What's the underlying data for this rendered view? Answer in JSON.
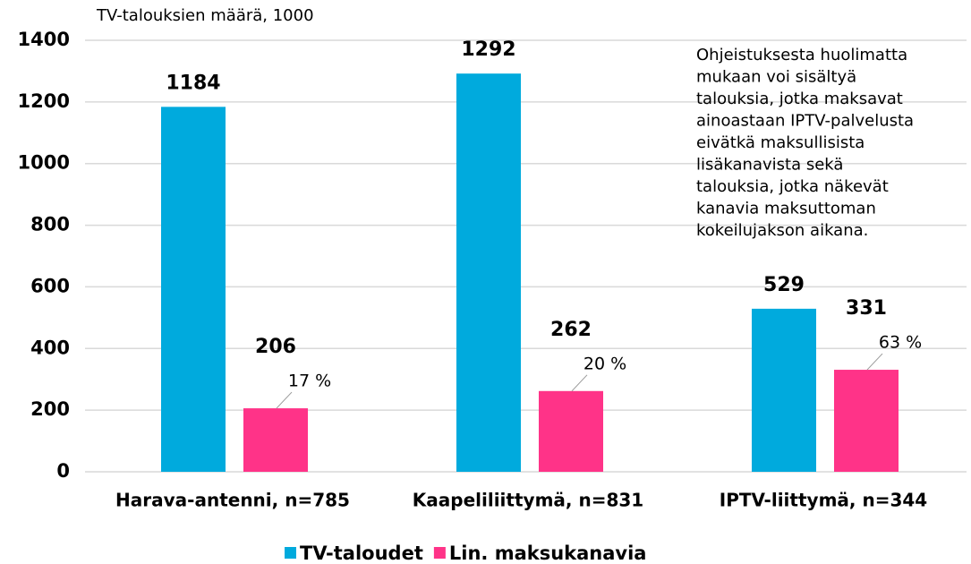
{
  "chart_data": {
    "type": "bar",
    "y_axis_label": "TV-talouksien määrä, 1000",
    "categories": [
      "Harava-antenni, n=785",
      "Kaapeliliittymä, n=831",
      "IPTV-liittymä, n=344"
    ],
    "series": [
      {
        "name": "TV-taloudet",
        "color": "#00aadd",
        "values": [
          1184,
          1292,
          529
        ]
      },
      {
        "name": "Lin. maksukanavia",
        "color": "#ff3388",
        "values": [
          206,
          262,
          331
        ],
        "share_labels": [
          "17 %",
          "20 %",
          "63 %"
        ]
      }
    ],
    "ylim": [
      0,
      1400
    ],
    "yticks": [
      0,
      200,
      400,
      600,
      800,
      1000,
      1200,
      1400
    ],
    "grid": true,
    "legend": "bottom",
    "note": [
      "Ohjeistuksesta huolimatta",
      "mukaan voi sisältyä",
      "talouksia, jotka maksavat",
      "ainoastaan IPTV-palvelusta",
      "eivätkä maksullisista",
      "lisäkanavista sekä",
      "talouksia, jotka näkevät",
      "kanavia maksuttoman",
      "kokeilujakson aikana."
    ]
  }
}
